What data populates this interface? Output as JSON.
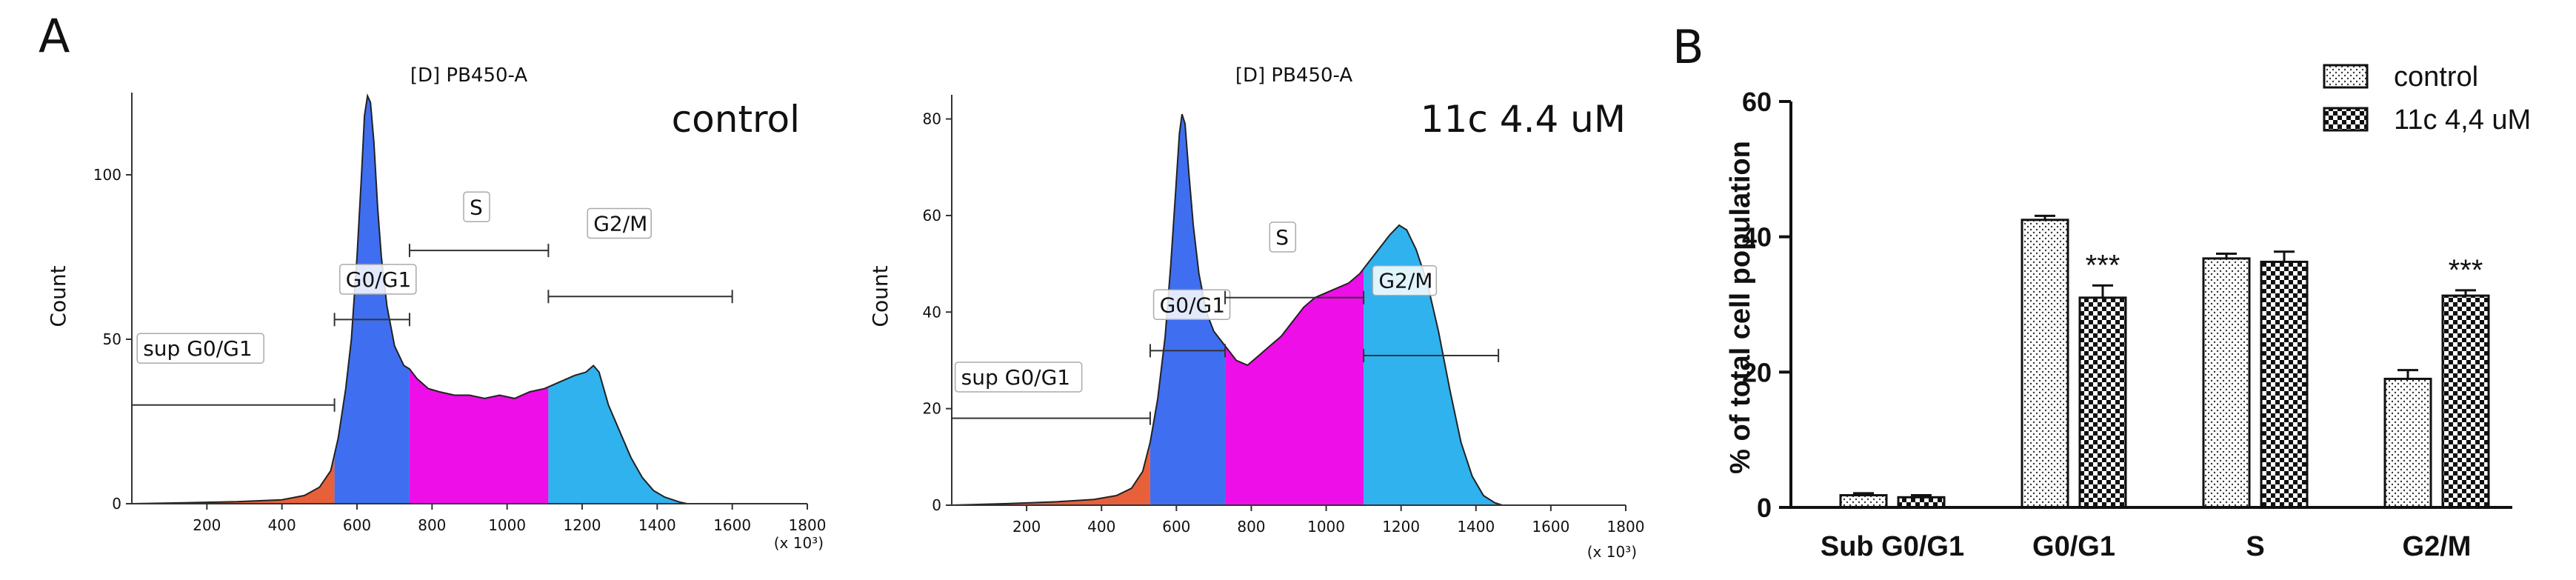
{
  "panels": {
    "a_label": "A",
    "b_label": "B"
  },
  "x_multiplier": "(x 10³)",
  "chart_data": [
    {
      "type": "area",
      "id": "histogram-control",
      "title": "[D] PB450-A",
      "condition_label": "control",
      "ylabel": "Count",
      "x_ticks": [
        200,
        400,
        600,
        800,
        1000,
        1200,
        1400,
        1600,
        1800
      ],
      "y_ticks": [
        0,
        50,
        100
      ],
      "xlim": [
        0,
        1800
      ],
      "ylim": [
        0,
        125
      ],
      "profile": [
        [
          0,
          0
        ],
        [
          140,
          0.3
        ],
        [
          280,
          0.6
        ],
        [
          400,
          1.2
        ],
        [
          460,
          2.5
        ],
        [
          500,
          5
        ],
        [
          530,
          10
        ],
        [
          550,
          20
        ],
        [
          570,
          35
        ],
        [
          585,
          50
        ],
        [
          600,
          75
        ],
        [
          612,
          100
        ],
        [
          620,
          118
        ],
        [
          628,
          124
        ],
        [
          636,
          122
        ],
        [
          645,
          110
        ],
        [
          655,
          90
        ],
        [
          665,
          75
        ],
        [
          680,
          60
        ],
        [
          700,
          48
        ],
        [
          725,
          42
        ],
        [
          740,
          41
        ],
        [
          760,
          38
        ],
        [
          790,
          35
        ],
        [
          820,
          34
        ],
        [
          860,
          33
        ],
        [
          900,
          33
        ],
        [
          940,
          32
        ],
        [
          980,
          33
        ],
        [
          1020,
          32
        ],
        [
          1060,
          34
        ],
        [
          1100,
          35
        ],
        [
          1140,
          37
        ],
        [
          1180,
          39
        ],
        [
          1210,
          40
        ],
        [
          1230,
          42
        ],
        [
          1245,
          40
        ],
        [
          1270,
          30
        ],
        [
          1300,
          22
        ],
        [
          1330,
          14
        ],
        [
          1360,
          8
        ],
        [
          1390,
          4
        ],
        [
          1420,
          2
        ],
        [
          1460,
          0.5
        ],
        [
          1480,
          0
        ]
      ],
      "phases": [
        {
          "name": "Sub G0/G1",
          "from": 0,
          "to": 540,
          "color": "#e8603a"
        },
        {
          "name": "G0/G1",
          "from": 540,
          "to": 740,
          "color": "#3f6ff0"
        },
        {
          "name": "S",
          "from": 740,
          "to": 1110,
          "color": "#ee0ee8"
        },
        {
          "name": "G2/M",
          "from": 1110,
          "to": 1480,
          "color": "#2fb2ee"
        }
      ],
      "gates": [
        {
          "label": "sup G0/G1",
          "from": 0,
          "to": 540,
          "y": 30,
          "label_x": 30,
          "label_y": 45
        },
        {
          "label": "G0/G1",
          "from": 540,
          "to": 740,
          "y": 56,
          "label_x": 570,
          "label_y": 66
        },
        {
          "label": "S",
          "from": 740,
          "to": 1110,
          "y": 77,
          "label_x": 900,
          "label_y": 88
        },
        {
          "label": "G2/M",
          "from": 1110,
          "to": 1600,
          "y": 63,
          "label_x": 1230,
          "label_y": 83
        }
      ]
    },
    {
      "type": "area",
      "id": "histogram-11c",
      "title": "[D] PB450-A",
      "condition_label": "11c 4.4 uM",
      "ylabel": "Count",
      "x_ticks": [
        200,
        400,
        600,
        800,
        1000,
        1200,
        1400,
        1600,
        1800
      ],
      "y_ticks": [
        0,
        20,
        40,
        60,
        80
      ],
      "xlim": [
        0,
        1800
      ],
      "ylim": [
        0,
        85
      ],
      "profile": [
        [
          0,
          0
        ],
        [
          140,
          0.3
        ],
        [
          280,
          0.7
        ],
        [
          380,
          1.2
        ],
        [
          440,
          2
        ],
        [
          480,
          3.5
        ],
        [
          510,
          7
        ],
        [
          530,
          13
        ],
        [
          550,
          22
        ],
        [
          570,
          35
        ],
        [
          585,
          50
        ],
        [
          598,
          65
        ],
        [
          608,
          77
        ],
        [
          615,
          81
        ],
        [
          623,
          79
        ],
        [
          632,
          70
        ],
        [
          645,
          58
        ],
        [
          660,
          48
        ],
        [
          680,
          40
        ],
        [
          700,
          36
        ],
        [
          720,
          34
        ],
        [
          740,
          32
        ],
        [
          760,
          30
        ],
        [
          790,
          29
        ],
        [
          820,
          31
        ],
        [
          850,
          33
        ],
        [
          880,
          35
        ],
        [
          910,
          38
        ],
        [
          940,
          41
        ],
        [
          970,
          43
        ],
        [
          1000,
          44
        ],
        [
          1030,
          45
        ],
        [
          1060,
          46
        ],
        [
          1090,
          48
        ],
        [
          1110,
          50
        ],
        [
          1140,
          53
        ],
        [
          1170,
          56
        ],
        [
          1195,
          58
        ],
        [
          1215,
          57
        ],
        [
          1240,
          53
        ],
        [
          1270,
          46
        ],
        [
          1300,
          36
        ],
        [
          1330,
          24
        ],
        [
          1360,
          13
        ],
        [
          1390,
          6
        ],
        [
          1420,
          2
        ],
        [
          1450,
          0.5
        ],
        [
          1470,
          0
        ]
      ],
      "phases": [
        {
          "name": "Sub G0/G1",
          "from": 0,
          "to": 530,
          "color": "#e8603a"
        },
        {
          "name": "G0/G1",
          "from": 530,
          "to": 730,
          "color": "#3f6ff0"
        },
        {
          "name": "S",
          "from": 730,
          "to": 1100,
          "color": "#ee0ee8"
        },
        {
          "name": "G2/M",
          "from": 1100,
          "to": 1470,
          "color": "#2fb2ee"
        }
      ],
      "gates": [
        {
          "label": "sup G0/G1",
          "from": 0,
          "to": 530,
          "y": 18,
          "label_x": 25,
          "label_y": 25
        },
        {
          "label": "G0/G1",
          "from": 530,
          "to": 730,
          "y": 32,
          "label_x": 555,
          "label_y": 40
        },
        {
          "label": "S",
          "from": 730,
          "to": 1100,
          "y": 43,
          "label_x": 865,
          "label_y": 54
        },
        {
          "label": "G2/M",
          "from": 1100,
          "to": 1460,
          "y": 31,
          "label_x": 1140,
          "label_y": 45
        }
      ]
    },
    {
      "type": "bar",
      "id": "bar-chart",
      "title": "",
      "xlabel": "",
      "ylabel": "% of total cell population",
      "categories": [
        "Sub G0/G1",
        "G0/G1",
        "S",
        "G2/M"
      ],
      "ylim": [
        0,
        60
      ],
      "y_ticks": [
        0,
        20,
        40,
        60
      ],
      "series": [
        {
          "name": "control",
          "values": [
            1.8,
            42.5,
            36.8,
            19.0
          ],
          "errors": [
            0.3,
            0.6,
            0.7,
            1.3
          ]
        },
        {
          "name": "11c 4,4 uM",
          "values": [
            1.5,
            31.0,
            36.3,
            31.3
          ],
          "errors": [
            0.3,
            1.8,
            1.5,
            0.8
          ]
        }
      ],
      "significance": [
        "",
        "***",
        "",
        "***"
      ]
    }
  ]
}
